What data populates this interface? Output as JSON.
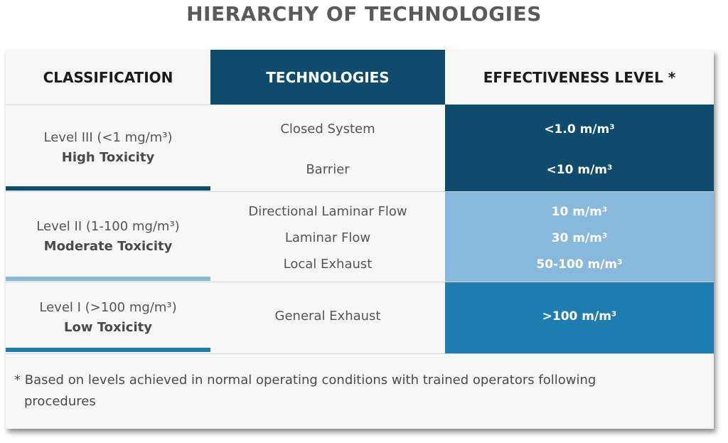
{
  "title": "HIERARCHY OF TECHNOLOGIES",
  "headers": {
    "classification": "CLASSIFICATION",
    "technologies": "TECHNOLOGIES",
    "effectiveness": "EFFECTIVENESS LEVEL *"
  },
  "rows": [
    {
      "level": "Level III (<1 mg/m³)",
      "toxicity": "High Toxicity",
      "technologies": [
        "Closed System",
        "Barrier"
      ],
      "effectiveness": [
        "<1.0 m/m³",
        "<10 m/m³"
      ],
      "color": "#0e4b6c",
      "accent_color": "#0e4b6c"
    },
    {
      "level": "Level II (1-100 mg/m³)",
      "toxicity": "Moderate Toxicity",
      "technologies": [
        "Directional Laminar Flow",
        "Laminar Flow",
        "Local Exhaust"
      ],
      "effectiveness": [
        "10 m/m³",
        "30 m/m³",
        "50-100 m/m³"
      ],
      "color": "#88b8dc",
      "accent_color": "#88b8dc"
    },
    {
      "level": "Level I (>100 mg/m³)",
      "toxicity": "Low Toxicity",
      "technologies": [
        "General Exhaust"
      ],
      "effectiveness": [
        ">100 m/m³"
      ],
      "color": "#1e7db0",
      "accent_color": "#1e7db0"
    }
  ],
  "footnote": "* Based on levels achieved in normal operating conditions with trained operators following procedures"
}
